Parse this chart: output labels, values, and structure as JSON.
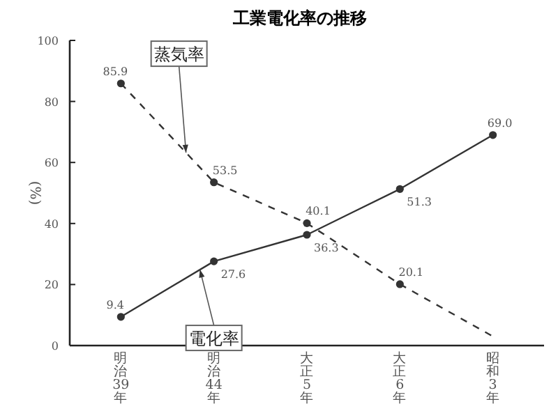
{
  "chart_data": {
    "type": "line",
    "title": "工業電化率の推移",
    "ylabel": "(%)",
    "categories": [
      "明治39年",
      "明治44年",
      "大正5年",
      "大正6年",
      "昭和3年"
    ],
    "series": [
      {
        "name": "電化率",
        "color": "#333333",
        "line_style": "solid",
        "values": [
          9.4,
          27.6,
          36.3,
          51.3,
          69.0
        ],
        "value_labels": [
          "9.4",
          "27.6",
          "36.3",
          "51.3",
          "69.0"
        ]
      },
      {
        "name": "蒸気率",
        "color": "#333333",
        "line_style": "dashed",
        "values": [
          85.9,
          53.5,
          40.1,
          20.1,
          3
        ],
        "value_labels": [
          "85.9",
          "53.5",
          "40.1",
          "20.1",
          null
        ]
      }
    ],
    "ylim": [
      0,
      100
    ],
    "yticks": [
      0,
      20,
      40,
      60,
      80,
      100
    ],
    "marker": "circle",
    "grid": false,
    "legend": false
  }
}
